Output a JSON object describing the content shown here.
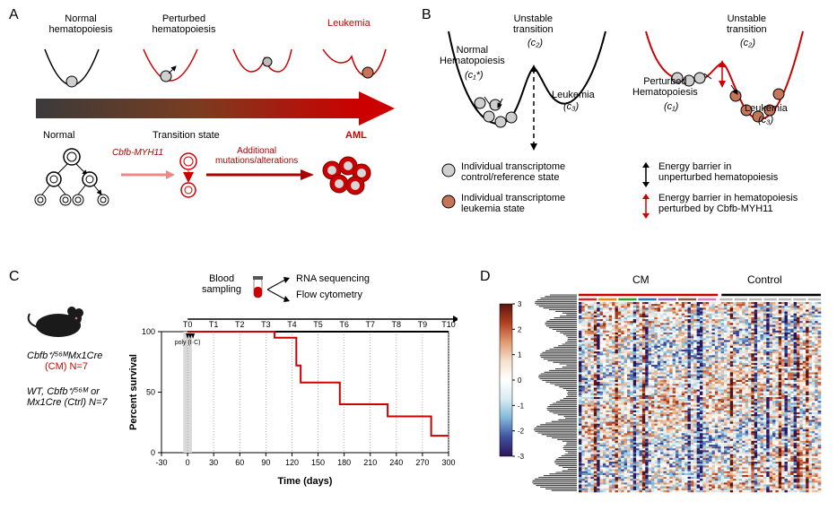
{
  "panelA": {
    "label": "A",
    "wells": {
      "normal": "Normal\nhematopoiesis",
      "perturbed": "Perturbed\nhematopoiesis",
      "leukemia": "Leukemia"
    },
    "arrowLower": {
      "left": "Normal",
      "mid": "Transition state",
      "mid2": "Additional\nmutations/alterations",
      "right": "AML",
      "mut": "Cbfb-MYH11"
    },
    "colors": {
      "gradStart": "#3b3b3b",
      "gradEnd": "#cc0000",
      "perturbCurve": "#cc0000",
      "normalCurve": "#000000",
      "cellFillGrey": "#cfcfcf",
      "cellFillRed": "#cc0000"
    }
  },
  "panelB": {
    "label": "B",
    "titles": {
      "left_top": "Unstable\ntransition",
      "left_top_math": "(c₂)",
      "left_normal": "Normal\nHematopoiesis",
      "left_normal_math": "(c₁*)",
      "left_leuk": "Leukemia",
      "left_leuk_math": "(c₃)",
      "right_top": "Unstable\ntransition",
      "right_top_math": "(c₂)",
      "right_perturbed": "Perturbed\nHematopoiesis",
      "right_perturbed_math": "(c₁)",
      "right_leuk": "Leukemia",
      "right_leuk_math": "(c₃)"
    },
    "legend": {
      "l1": "Individual transcriptome\ncontrol/reference state",
      "l2": "Individual transcriptome\nleukemia state",
      "l3": "Energy barrier in\nunperturbed hematopoiesis",
      "l4": "Energy barrier in hematopoiesis\nperturbed by Cbfb-MYH11"
    },
    "colors": {
      "curveLeft": "#000000",
      "curveRight": "#cc0000",
      "cellGrey": "#cfcfcf",
      "cellRed": "#c77558"
    }
  },
  "panelC": {
    "label": "C",
    "genotypeCM": "Cbfbᐩ/⁵⁶ᴹMx1Cre",
    "genotypeCM_short": "(CM) N=7",
    "genotypeCtrl": "WT, Cbfbᐩ/⁵⁶ᴹ or",
    "genotypeCtrl2": "Mx1Cre (Ctrl) N=7",
    "bloodSampling": "Blood\nsampling",
    "branch1": "RNA sequencing",
    "branch2": "Flow cytometry",
    "polyIC": "poly (I·C)",
    "timepoints": [
      "T0",
      "T1",
      "T2",
      "T3",
      "T4",
      "T5",
      "T6",
      "T7",
      "T8",
      "T9",
      "T10"
    ],
    "xticks": [
      -30,
      0,
      30,
      60,
      90,
      120,
      150,
      180,
      210,
      240,
      270,
      300
    ],
    "xlabel": "Time (days)",
    "ylabel": "Percent survival",
    "ylim": [
      0,
      100
    ],
    "ytick_step": 50,
    "survival": {
      "x": [
        0,
        100,
        100,
        125,
        125,
        130,
        130,
        175,
        175,
        230,
        230,
        280,
        280,
        300
      ],
      "y": [
        100,
        100,
        95,
        95,
        72,
        72,
        58,
        58,
        40,
        40,
        30,
        30,
        14,
        14
      ],
      "color": "#cc0000"
    },
    "ctrlLineColor": "#000000"
  },
  "panelD": {
    "label": "D",
    "header": {
      "cm": "CM",
      "control": "Control"
    },
    "colorbar": {
      "min": -3,
      "max": 3,
      "step": 1,
      "colors": [
        "#2c145b",
        "#4050a0",
        "#7fb8d8",
        "#d9ecf3",
        "#ffffff",
        "#f6e0cc",
        "#e09a6f",
        "#b34020",
        "#5a140f"
      ]
    },
    "heatmap": {
      "cols": 80,
      "rows": 100,
      "groupColorsCM": [
        "#d62728",
        "#ff7f0e",
        "#2ca02c",
        "#1f77b4",
        "#9467bd",
        "#8c564b",
        "#e377c2"
      ],
      "groupColorsCtrl": [
        "#bbbbbb",
        "#bbbbbb",
        "#bbbbbb",
        "#bbbbbb",
        "#bbbbbb",
        "#bbbbbb",
        "#bbbbbb"
      ],
      "barCM": "#cc0000",
      "barCtrl": "#000000",
      "bg": "#ffffff"
    }
  }
}
